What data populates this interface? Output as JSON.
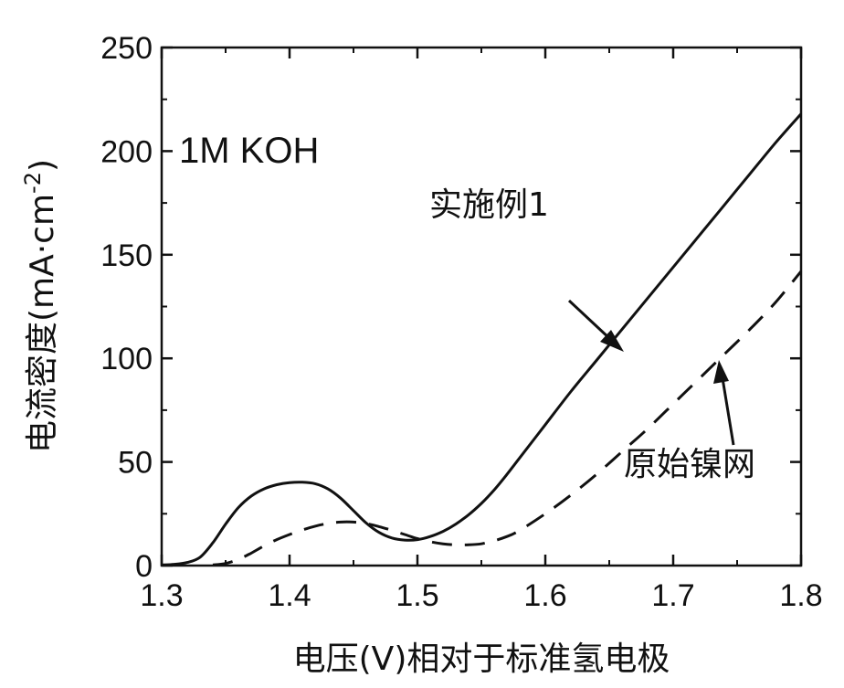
{
  "chart_data": {
    "type": "line",
    "xlabel": "电压(V)相对于标准氢电极",
    "ylabel": "电流密度(mA·cm",
    "ylabel_sup": "-2",
    "ylabel_close": ")",
    "xlim": [
      1.3,
      1.8
    ],
    "ylim": [
      0,
      250
    ],
    "x_ticks": [
      "1.3",
      "1.4",
      "1.5",
      "1.6",
      "1.7",
      "1.8"
    ],
    "y_ticks": [
      "0",
      "50",
      "100",
      "150",
      "200",
      "250"
    ],
    "annotations": [
      {
        "text": "1M KOH"
      },
      {
        "text": "实施例1"
      },
      {
        "text": "原始镍网"
      }
    ],
    "series": [
      {
        "name": "实施例1",
        "style": "solid",
        "points": [
          [
            1.3,
            0.3
          ],
          [
            1.31,
            0.6
          ],
          [
            1.32,
            1.5
          ],
          [
            1.33,
            4
          ],
          [
            1.34,
            11
          ],
          [
            1.35,
            20
          ],
          [
            1.36,
            28
          ],
          [
            1.37,
            33.5
          ],
          [
            1.38,
            37
          ],
          [
            1.39,
            39
          ],
          [
            1.4,
            40
          ],
          [
            1.41,
            40.2
          ],
          [
            1.42,
            39.5
          ],
          [
            1.43,
            37
          ],
          [
            1.44,
            32.5
          ],
          [
            1.45,
            26.5
          ],
          [
            1.46,
            20.5
          ],
          [
            1.47,
            16
          ],
          [
            1.48,
            13.3
          ],
          [
            1.49,
            12.3
          ],
          [
            1.5,
            12.5
          ],
          [
            1.51,
            14
          ],
          [
            1.52,
            16.5
          ],
          [
            1.53,
            20
          ],
          [
            1.54,
            24.5
          ],
          [
            1.55,
            30
          ],
          [
            1.56,
            36.5
          ],
          [
            1.57,
            44
          ],
          [
            1.58,
            52
          ],
          [
            1.6,
            68
          ],
          [
            1.62,
            84
          ],
          [
            1.64,
            99
          ],
          [
            1.66,
            114
          ],
          [
            1.68,
            129
          ],
          [
            1.7,
            144
          ],
          [
            1.72,
            159
          ],
          [
            1.74,
            174
          ],
          [
            1.76,
            189
          ],
          [
            1.78,
            204
          ],
          [
            1.8,
            218
          ]
        ]
      },
      {
        "name": "原始镍网",
        "style": "dashed",
        "points": [
          [
            1.34,
            0.3
          ],
          [
            1.35,
            1
          ],
          [
            1.36,
            3
          ],
          [
            1.37,
            6
          ],
          [
            1.38,
            9.5
          ],
          [
            1.39,
            12.5
          ],
          [
            1.4,
            15
          ],
          [
            1.41,
            17.2
          ],
          [
            1.42,
            19
          ],
          [
            1.43,
            20.3
          ],
          [
            1.44,
            21
          ],
          [
            1.45,
            21
          ],
          [
            1.46,
            20.3
          ],
          [
            1.47,
            18.8
          ],
          [
            1.48,
            17
          ],
          [
            1.49,
            15
          ],
          [
            1.5,
            13
          ],
          [
            1.51,
            11.5
          ],
          [
            1.52,
            10.5
          ],
          [
            1.53,
            10
          ],
          [
            1.54,
            10
          ],
          [
            1.55,
            10.5
          ],
          [
            1.56,
            12
          ],
          [
            1.57,
            14
          ],
          [
            1.58,
            17
          ],
          [
            1.6,
            25
          ],
          [
            1.62,
            34
          ],
          [
            1.64,
            44
          ],
          [
            1.66,
            55
          ],
          [
            1.68,
            66
          ],
          [
            1.7,
            78
          ],
          [
            1.72,
            90
          ],
          [
            1.74,
            102
          ],
          [
            1.76,
            114
          ],
          [
            1.78,
            127
          ],
          [
            1.8,
            142
          ]
        ]
      }
    ]
  }
}
